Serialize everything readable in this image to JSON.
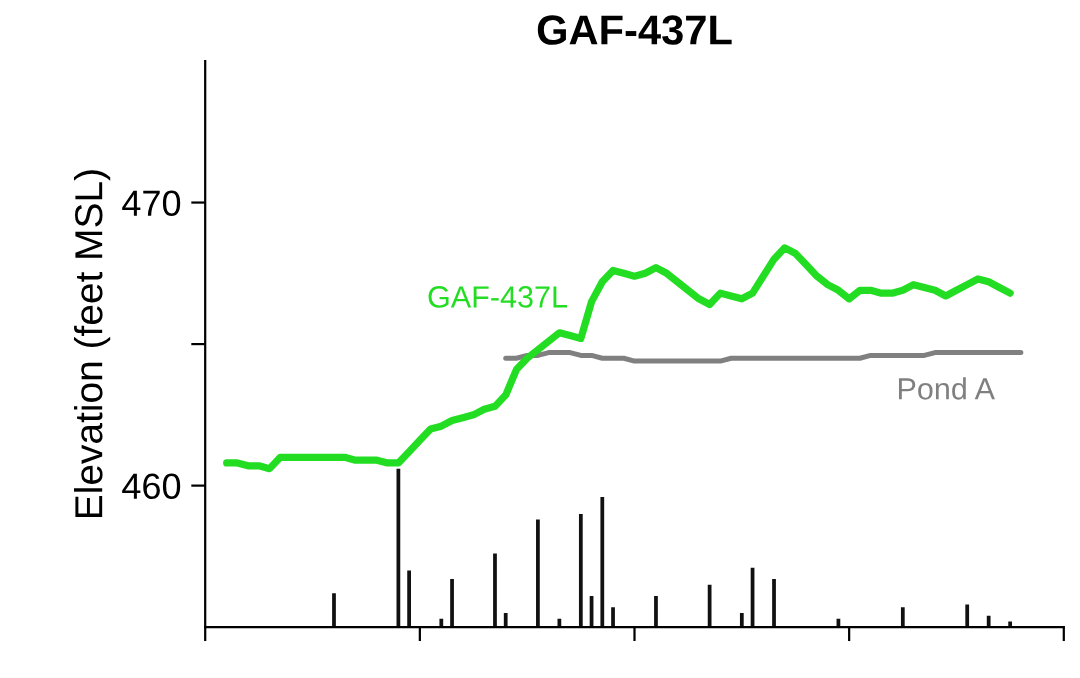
{
  "chart_data": {
    "type": "line",
    "title": "GAF-437L",
    "ylabel": "Elevation (feet MSL)",
    "categories": [
      null,
      null,
      null,
      null,
      null,
      null,
      null,
      null,
      null,
      null,
      null,
      null,
      null,
      null,
      null,
      null,
      null,
      null,
      null,
      null,
      null,
      null,
      null,
      null,
      null,
      null,
      null,
      null,
      null,
      null,
      null,
      null,
      null,
      null,
      null,
      null,
      null,
      null,
      null,
      null,
      null,
      null,
      null,
      null,
      null,
      null,
      null,
      null,
      null,
      null,
      null,
      null,
      null,
      null,
      null,
      null,
      null,
      null,
      null,
      null,
      null,
      null,
      null,
      null,
      null,
      null,
      null,
      null,
      null,
      null,
      null,
      null,
      null,
      null,
      null,
      null,
      null,
      null,
      null,
      null,
      null
    ],
    "ylim": [
      455,
      475
    ],
    "yticks": [
      460,
      {
        "value": 465,
        "label": null
      },
      470
    ],
    "grid": false,
    "legend": false,
    "series": [
      {
        "name": "GAF-437L",
        "color": "#22dd22",
        "values": [
          null,
          null,
          460.8,
          460.8,
          460.7,
          460.7,
          460.6,
          461.0,
          461.0,
          461.0,
          461.0,
          461.0,
          461.0,
          461.0,
          460.9,
          460.9,
          460.9,
          460.8,
          460.8,
          461.2,
          461.6,
          462.0,
          462.1,
          462.3,
          462.4,
          462.5,
          462.7,
          462.8,
          463.2,
          464.1,
          464.5,
          464.8,
          465.1,
          465.4,
          465.3,
          465.2,
          466.5,
          467.2,
          467.6,
          467.5,
          467.4,
          467.5,
          467.7,
          467.5,
          467.2,
          466.9,
          466.6,
          466.4,
          466.8,
          466.7,
          466.6,
          466.8,
          467.4,
          468.0,
          468.4,
          468.2,
          467.8,
          467.4,
          467.1,
          466.9,
          466.6,
          466.9,
          466.9,
          466.8,
          466.8,
          466.9,
          467.1,
          467.0,
          466.9,
          466.7,
          466.9,
          467.1,
          467.3,
          467.2,
          467.0,
          466.8,
          null,
          null,
          null,
          null,
          null
        ]
      },
      {
        "name": "Pond A",
        "color": "#808080",
        "values": [
          null,
          null,
          null,
          null,
          null,
          null,
          null,
          null,
          null,
          null,
          null,
          null,
          null,
          null,
          null,
          null,
          null,
          null,
          null,
          null,
          null,
          null,
          null,
          null,
          null,
          null,
          null,
          null,
          464.5,
          464.5,
          464.6,
          464.6,
          464.7,
          464.7,
          464.7,
          464.6,
          464.6,
          464.5,
          464.5,
          464.5,
          464.4,
          464.4,
          464.4,
          464.4,
          464.4,
          464.4,
          464.4,
          464.4,
          464.4,
          464.5,
          464.5,
          464.5,
          464.5,
          464.5,
          464.5,
          464.5,
          464.5,
          464.5,
          464.5,
          464.5,
          464.5,
          464.5,
          464.6,
          464.6,
          464.6,
          464.6,
          464.6,
          464.6,
          464.7,
          464.7,
          464.7,
          464.7,
          464.7,
          464.7,
          464.7,
          464.7,
          464.7,
          null,
          null,
          null,
          null
        ]
      },
      {
        "color": "#111111",
        "type": "bar",
        "values": [
          null,
          null,
          null,
          null,
          null,
          null,
          null,
          null,
          null,
          null,
          null,
          null,
          1.2,
          null,
          null,
          null,
          null,
          null,
          5.6,
          2.0,
          null,
          null,
          0.3,
          1.7,
          null,
          null,
          null,
          2.6,
          0.5,
          null,
          null,
          3.8,
          null,
          0.3,
          null,
          4.0,
          1.1,
          4.6,
          0.7,
          null,
          null,
          null,
          1.1,
          null,
          null,
          null,
          null,
          1.5,
          null,
          null,
          0.5,
          2.1,
          null,
          1.7,
          null,
          null,
          null,
          null,
          null,
          0.3,
          null,
          null,
          null,
          null,
          null,
          0.7,
          null,
          null,
          null,
          null,
          null,
          0.8,
          null,
          0.4,
          null,
          0.2,
          null,
          null,
          null,
          null,
          null
        ],
        "base": [
          null,
          null,
          null,
          null,
          null,
          null,
          null,
          null,
          null,
          null,
          null,
          null,
          455,
          null,
          null,
          null,
          null,
          null,
          455,
          455,
          null,
          null,
          455,
          455,
          null,
          null,
          null,
          455,
          455,
          null,
          null,
          455,
          null,
          455,
          null,
          455,
          455,
          455,
          455,
          null,
          null,
          null,
          455,
          null,
          null,
          null,
          null,
          455,
          null,
          null,
          455,
          455,
          null,
          455,
          null,
          null,
          null,
          null,
          null,
          455,
          null,
          null,
          null,
          null,
          null,
          455,
          null,
          null,
          null,
          null,
          null,
          455,
          null,
          455,
          null,
          455,
          null,
          null,
          null,
          null,
          null
        ]
      }
    ]
  }
}
